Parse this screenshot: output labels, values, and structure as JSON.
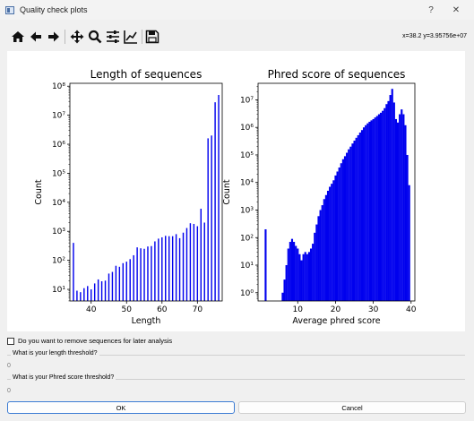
{
  "window": {
    "title": "Quality check plots",
    "help": "?",
    "close": "✕"
  },
  "toolbar": {
    "tools": [
      {
        "name": "home-icon",
        "glyph": "⌂"
      },
      {
        "name": "back-icon",
        "glyph": "←"
      },
      {
        "name": "forward-icon",
        "glyph": "→"
      },
      {
        "name": "pan-icon",
        "glyph": "✥"
      },
      {
        "name": "zoom-icon",
        "glyph": "🔍"
      },
      {
        "name": "subplots-icon",
        "glyph": "☰"
      },
      {
        "name": "axes-icon",
        "glyph": "↗"
      },
      {
        "name": "save-icon",
        "glyph": "💾"
      }
    ],
    "coords": "x=38.2 y=3.95756e+07"
  },
  "chart_data": [
    {
      "type": "bar",
      "title": "Length of sequences",
      "xlabel": "Length",
      "ylabel": "Count",
      "xlim": [
        34,
        77
      ],
      "ylog": true,
      "ylim_exp": [
        0.6,
        8.1
      ],
      "xticks": [
        "40",
        "50",
        "60",
        "70"
      ],
      "xtick_values": [
        40,
        50,
        60,
        70
      ],
      "yticks": [
        "10¹",
        "10²",
        "10³",
        "10⁴",
        "10⁵",
        "10⁶",
        "10⁷",
        "10⁸"
      ],
      "color": "#0000ee",
      "x": [
        35,
        36,
        37,
        38,
        39,
        40,
        41,
        42,
        43,
        44,
        45,
        46,
        47,
        48,
        49,
        50,
        51,
        52,
        53,
        54,
        55,
        56,
        57,
        58,
        59,
        60,
        61,
        62,
        63,
        64,
        65,
        66,
        67,
        68,
        69,
        70,
        71,
        72,
        73,
        74,
        75,
        76
      ],
      "values": [
        400,
        9,
        8,
        11,
        13,
        10,
        16,
        22,
        19,
        20,
        35,
        40,
        65,
        60,
        80,
        90,
        110,
        150,
        280,
        260,
        250,
        300,
        310,
        450,
        560,
        620,
        700,
        680,
        680,
        800,
        580,
        900,
        1300,
        1900,
        1800,
        1500,
        6000,
        2000,
        1600000,
        2000000,
        28000000,
        50000000
      ]
    },
    {
      "type": "bar",
      "title": "Phred score of sequences",
      "xlabel": "Average phred score",
      "ylabel": "Count",
      "xlim": [
        -0.5,
        41
      ],
      "ylog": true,
      "ylim_exp": [
        -0.3,
        7.6
      ],
      "xticks": [
        "10",
        "20",
        "30",
        "40"
      ],
      "xtick_values": [
        10,
        20,
        30,
        40
      ],
      "yticks": [
        "10⁰",
        "10¹",
        "10²",
        "10³",
        "10⁴",
        "10⁵",
        "10⁶",
        "10⁷"
      ],
      "color": "#0000ee",
      "x": [
        1.5,
        6.0,
        6.5,
        7.0,
        7.5,
        8.0,
        8.5,
        9.0,
        9.5,
        10.0,
        10.5,
        11.0,
        11.5,
        12.0,
        12.5,
        13.0,
        13.5,
        14.0,
        14.5,
        15.0,
        15.5,
        16.0,
        16.5,
        17.0,
        17.5,
        18.0,
        18.5,
        19.0,
        19.5,
        20.0,
        20.5,
        21.0,
        21.5,
        22.0,
        22.5,
        23.0,
        23.5,
        24.0,
        24.5,
        25.0,
        25.5,
        26.0,
        26.5,
        27.0,
        27.5,
        28.0,
        28.5,
        29.0,
        29.5,
        30.0,
        30.5,
        31.0,
        31.5,
        32.0,
        32.5,
        33.0,
        33.5,
        34.0,
        34.5,
        35.0,
        35.5,
        36.0,
        36.5,
        37.0,
        37.5,
        38.0,
        38.5,
        39.0,
        39.5
      ],
      "values": [
        200,
        1,
        3,
        10,
        40,
        70,
        90,
        70,
        50,
        40,
        25,
        15,
        25,
        30,
        25,
        30,
        40,
        60,
        150,
        300,
        600,
        1000,
        1500,
        2500,
        3500,
        5000,
        7000,
        9000,
        12000,
        18000,
        25000,
        35000,
        50000,
        70000,
        90000,
        120000,
        160000,
        200000,
        260000,
        330000,
        420000,
        520000,
        650000,
        800000,
        1000000,
        1200000,
        1400000,
        1600000,
        1800000,
        2000000,
        2300000,
        2600000,
        3000000,
        3400000,
        4000000,
        5000000,
        7000000,
        9000000,
        15000000,
        25000000,
        8000000,
        2000000,
        1500000,
        3000000,
        4500000,
        3000000,
        1200000,
        100000,
        8000
      ]
    }
  ],
  "controls": {
    "remove_label": "Do you want to remove sequences for later analysis",
    "length_group": "What is your length threshold?",
    "length_value": "0",
    "phred_group": "What is your Phred score threshold?",
    "phred_value": "0",
    "ok_label": "OK",
    "cancel_label": "Cancel"
  }
}
